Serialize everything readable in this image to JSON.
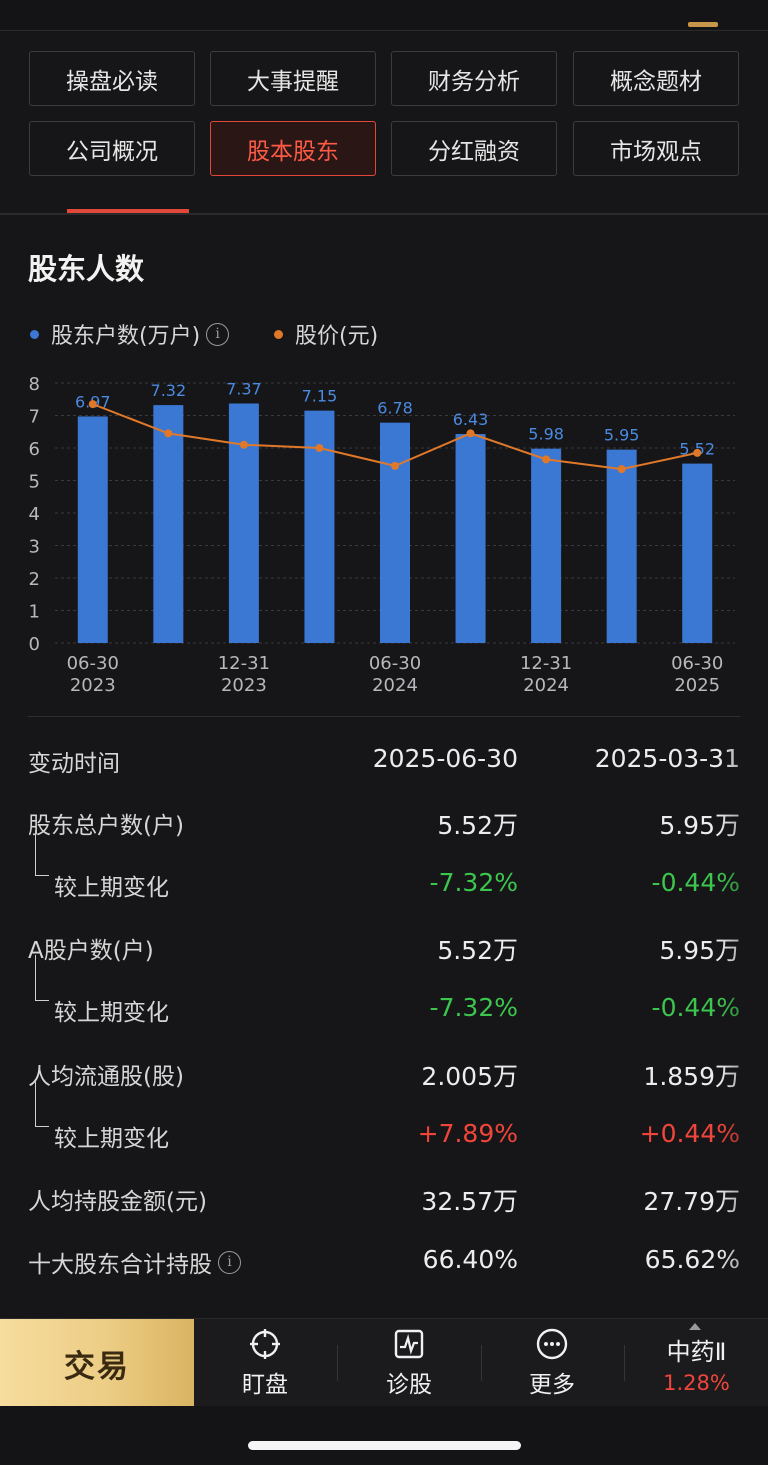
{
  "tabs": [
    {
      "label": "操盘必读",
      "active": false
    },
    {
      "label": "大事提醒",
      "active": false
    },
    {
      "label": "财务分析",
      "active": false
    },
    {
      "label": "概念题材",
      "active": false
    },
    {
      "label": "公司概况",
      "active": false
    },
    {
      "label": "股本股东",
      "active": true
    },
    {
      "label": "分红融资",
      "active": false
    },
    {
      "label": "市场观点",
      "active": false
    }
  ],
  "section_title": "股东人数",
  "legend": {
    "holders": "股东户数(万户)",
    "price": "股价(元)",
    "holders_color": "#3a78d4",
    "price_color": "#e0782a"
  },
  "chart_data": {
    "type": "bar",
    "categories": [
      "2023-06-30",
      "2023-09-30",
      "2023-12-31",
      "2024-03-31",
      "2024-06-30",
      "2024-09-30",
      "2024-12-31",
      "2025-03-31",
      "2025-06-30"
    ],
    "x_tick_labels": [
      {
        "index": 0,
        "top": "06-30",
        "bottom": "2023"
      },
      {
        "index": 2,
        "top": "12-31",
        "bottom": "2023"
      },
      {
        "index": 4,
        "top": "06-30",
        "bottom": "2024"
      },
      {
        "index": 6,
        "top": "12-31",
        "bottom": "2024"
      },
      {
        "index": 8,
        "top": "06-30",
        "bottom": "2025"
      }
    ],
    "series": [
      {
        "name": "股东户数(万户)",
        "type": "bar",
        "color": "#3a78d4",
        "values": [
          6.97,
          7.32,
          7.37,
          7.15,
          6.78,
          6.43,
          5.98,
          5.95,
          5.52
        ]
      },
      {
        "name": "股价(元)",
        "type": "line",
        "color": "#e0782a",
        "values": [
          7.35,
          6.45,
          6.1,
          6.0,
          5.45,
          6.45,
          5.65,
          5.35,
          5.85
        ]
      }
    ],
    "ylim": [
      0,
      8
    ],
    "yticks": [
      0,
      1,
      2,
      3,
      4,
      5,
      6,
      7,
      8
    ],
    "grid": true
  },
  "table": {
    "header": {
      "label": "变动时间",
      "v1": "2025-06-30",
      "v2": "2025-03-31"
    },
    "rows": [
      {
        "label": "股东总户数(户)",
        "v1": "5.52万",
        "v2": "5.95万",
        "sub": false,
        "tone": ""
      },
      {
        "label": "较上期变化",
        "v1": "-7.32%",
        "v2": "-0.44%",
        "sub": true,
        "tone": "green"
      },
      {
        "label": "A股户数(户)",
        "v1": "5.52万",
        "v2": "5.95万",
        "sub": false,
        "tone": ""
      },
      {
        "label": "较上期变化",
        "v1": "-7.32%",
        "v2": "-0.44%",
        "sub": true,
        "tone": "green"
      },
      {
        "label": "人均流通股(股)",
        "v1": "2.005万",
        "v2": "1.859万",
        "sub": false,
        "tone": ""
      },
      {
        "label": "较上期变化",
        "v1": "+7.89%",
        "v2": "+0.44%",
        "sub": true,
        "tone": "red"
      },
      {
        "label": "人均持股金额(元)",
        "v1": "32.57万",
        "v2": "27.79万",
        "sub": false,
        "tone": ""
      },
      {
        "label": "十大股东合计持股",
        "v1": "66.40%",
        "v2": "65.62%",
        "sub": false,
        "tone": "",
        "info": true
      }
    ]
  },
  "bottom_bar": {
    "trade": "交易",
    "watch": "盯盘",
    "diagnose": "诊股",
    "more": "更多",
    "stock_name": "中药Ⅱ",
    "stock_change": "1.28%"
  }
}
